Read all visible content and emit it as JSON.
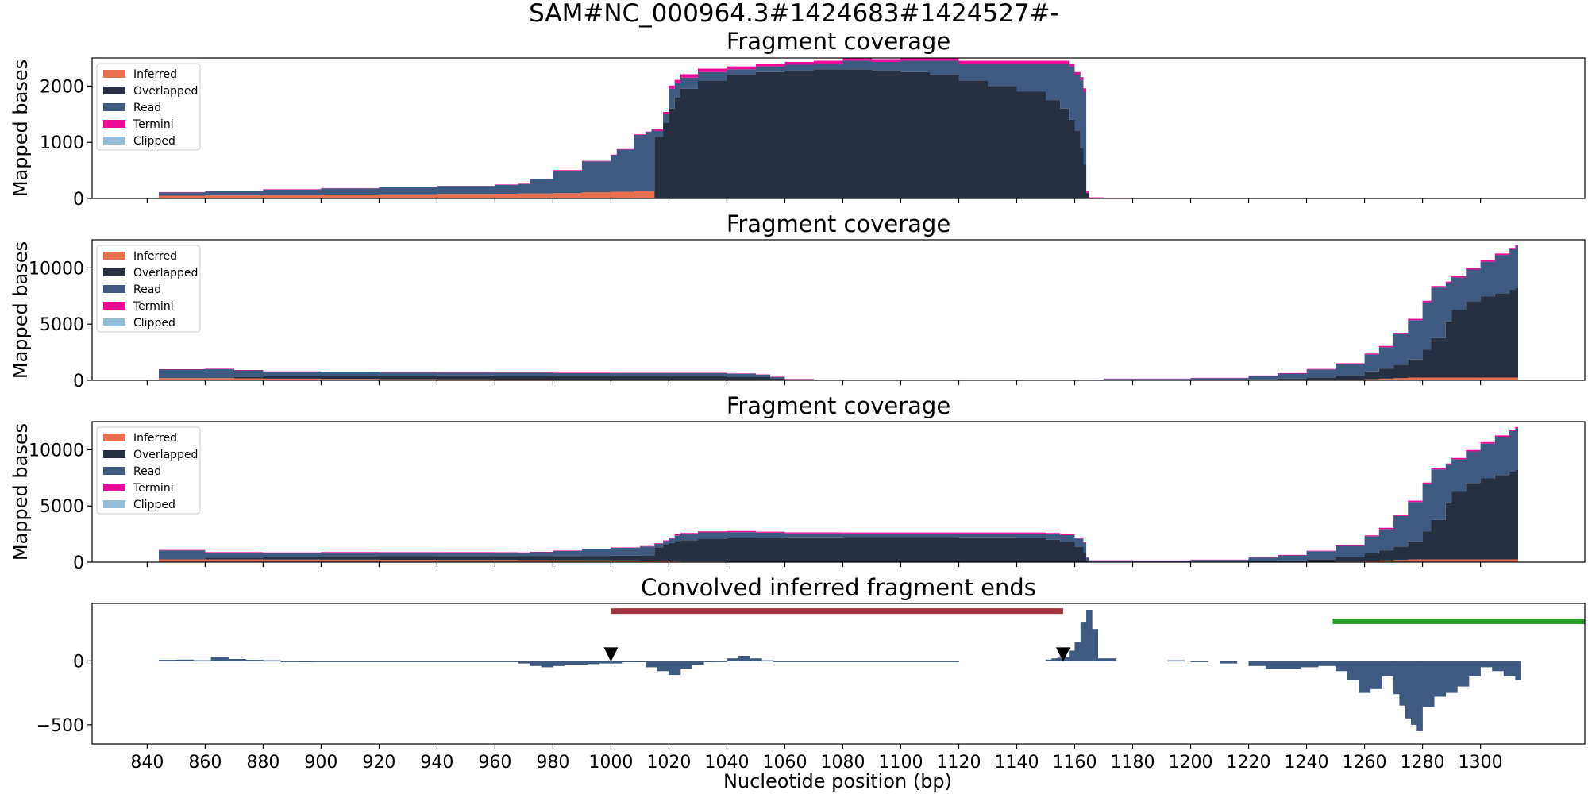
{
  "suptitle": "SAM#NC_000964.3#1424683#1424527#-",
  "xlabel": "Nucleotide position (bp)",
  "x_range": [
    821,
    1336
  ],
  "x_ticks": [
    840,
    860,
    880,
    900,
    920,
    940,
    960,
    980,
    1000,
    1020,
    1040,
    1060,
    1080,
    1100,
    1120,
    1140,
    1160,
    1180,
    1200,
    1220,
    1240,
    1260,
    1280,
    1300
  ],
  "legend_entries": [
    {
      "label": "Inferred",
      "color": "#e8704f"
    },
    {
      "label": "Overlapped",
      "color": "#263042"
    },
    {
      "label": "Read",
      "color": "#3e5a80"
    },
    {
      "label": "Termini",
      "color": "#ee0a99"
    },
    {
      "label": "Clipped",
      "color": "#95bcd8"
    }
  ],
  "chart_data": [
    {
      "type": "area",
      "title": "Fragment coverage",
      "ylabel": "Mapped bases",
      "ylim": [
        0,
        2500
      ],
      "yticks": [
        0,
        1000,
        2000
      ],
      "legend": "top-left",
      "x": [
        844,
        860,
        880,
        900,
        920,
        940,
        960,
        968,
        972,
        980,
        990,
        1000,
        1002,
        1008,
        1012,
        1014,
        1015,
        1018,
        1020,
        1022,
        1024,
        1030,
        1040,
        1050,
        1060,
        1070,
        1080,
        1090,
        1100,
        1110,
        1120,
        1130,
        1140,
        1150,
        1155,
        1158,
        1160,
        1162,
        1163,
        1164,
        1165,
        1170,
        1180,
        1312
      ],
      "series": [
        {
          "name": "Inferred",
          "values": [
            50,
            55,
            60,
            70,
            75,
            80,
            85,
            90,
            90,
            95,
            110,
            120,
            120,
            130,
            130,
            130,
            0,
            0,
            0,
            0,
            0,
            0,
            0,
            0,
            0,
            0,
            0,
            0,
            0,
            0,
            0,
            0,
            0,
            0,
            0,
            0,
            0,
            0,
            0,
            0,
            0,
            0,
            0,
            0
          ]
        },
        {
          "name": "Overlapped",
          "values": [
            0,
            0,
            0,
            0,
            0,
            0,
            0,
            0,
            0,
            0,
            0,
            0,
            0,
            0,
            0,
            0,
            1100,
            1350,
            1600,
            1800,
            1950,
            2100,
            2200,
            2250,
            2280,
            2300,
            2300,
            2280,
            2250,
            2200,
            2100,
            2000,
            1900,
            1750,
            1600,
            1400,
            1200,
            900,
            600,
            100,
            0,
            0,
            0,
            0
          ]
        },
        {
          "name": "Read",
          "values": [
            60,
            80,
            100,
            110,
            130,
            140,
            160,
            170,
            250,
            400,
            550,
            650,
            750,
            1000,
            1050,
            1100,
            100,
            150,
            350,
            250,
            200,
            150,
            100,
            100,
            100,
            100,
            150,
            150,
            200,
            250,
            300,
            400,
            500,
            650,
            800,
            950,
            1000,
            1200,
            1300,
            0,
            0,
            0,
            0,
            0
          ]
        },
        {
          "name": "Termini",
          "values": [
            5,
            5,
            5,
            5,
            5,
            5,
            5,
            5,
            10,
            10,
            10,
            10,
            10,
            10,
            10,
            10,
            30,
            40,
            60,
            60,
            60,
            60,
            50,
            50,
            50,
            50,
            50,
            50,
            50,
            50,
            50,
            50,
            50,
            50,
            50,
            50,
            50,
            60,
            60,
            40,
            20,
            10,
            5,
            0
          ]
        },
        {
          "name": "Clipped",
          "values": [
            0,
            0,
            0,
            0,
            0,
            0,
            0,
            0,
            0,
            0,
            0,
            0,
            0,
            0,
            0,
            0,
            0,
            0,
            0,
            0,
            0,
            0,
            0,
            0,
            0,
            0,
            0,
            0,
            0,
            0,
            0,
            0,
            0,
            0,
            0,
            0,
            0,
            0,
            0,
            0,
            0,
            0,
            0,
            0
          ]
        }
      ]
    },
    {
      "type": "area",
      "title": "Fragment coverage",
      "ylabel": "Mapped bases",
      "ylim": [
        0,
        12500
      ],
      "yticks": [
        0,
        5000,
        10000
      ],
      "legend": "top-left",
      "x": [
        844,
        860,
        870,
        880,
        900,
        920,
        940,
        960,
        980,
        1000,
        1020,
        1040,
        1050,
        1055,
        1060,
        1070,
        1100,
        1150,
        1170,
        1200,
        1220,
        1230,
        1240,
        1250,
        1260,
        1265,
        1270,
        1275,
        1280,
        1283,
        1288,
        1290,
        1295,
        1300,
        1305,
        1310,
        1312
      ],
      "series": [
        {
          "name": "Inferred",
          "values": [
            200,
            200,
            180,
            150,
            120,
            100,
            80,
            70,
            60,
            50,
            50,
            40,
            30,
            20,
            10,
            0,
            0,
            0,
            0,
            0,
            0,
            0,
            20,
            50,
            100,
            150,
            200,
            250,
            250,
            250,
            250,
            250,
            250,
            250,
            250,
            250,
            250
          ]
        },
        {
          "name": "Overlapped",
          "values": [
            0,
            0,
            100,
            200,
            300,
            350,
            350,
            350,
            350,
            350,
            350,
            300,
            250,
            150,
            50,
            30,
            30,
            30,
            30,
            50,
            100,
            150,
            250,
            400,
            700,
            900,
            1200,
            1600,
            2500,
            3500,
            5000,
            6000,
            6800,
            7200,
            7500,
            7800,
            8000
          ]
        },
        {
          "name": "Read",
          "values": [
            750,
            800,
            600,
            400,
            300,
            250,
            250,
            250,
            250,
            250,
            250,
            250,
            220,
            130,
            40,
            20,
            20,
            20,
            100,
            150,
            300,
            450,
            700,
            1000,
            1500,
            1900,
            2700,
            3500,
            4200,
            4500,
            3400,
            2900,
            2800,
            3100,
            3400,
            3600,
            3650
          ]
        },
        {
          "name": "Termini",
          "values": [
            40,
            40,
            40,
            40,
            30,
            30,
            30,
            30,
            30,
            30,
            30,
            30,
            30,
            30,
            20,
            10,
            10,
            10,
            20,
            20,
            30,
            40,
            50,
            70,
            90,
            100,
            110,
            120,
            130,
            130,
            120,
            120,
            120,
            120,
            120,
            120,
            120
          ]
        },
        {
          "name": "Clipped",
          "values": [
            0,
            0,
            0,
            0,
            0,
            0,
            0,
            0,
            0,
            0,
            0,
            0,
            0,
            0,
            0,
            0,
            0,
            0,
            0,
            0,
            0,
            0,
            0,
            0,
            0,
            0,
            0,
            0,
            0,
            0,
            0,
            0,
            0,
            0,
            0,
            0,
            0
          ]
        }
      ]
    },
    {
      "type": "area",
      "title": "Fragment coverage",
      "ylabel": "Mapped bases",
      "ylim": [
        0,
        12500
      ],
      "yticks": [
        0,
        5000,
        10000
      ],
      "legend": "top-left",
      "x": [
        844,
        860,
        880,
        900,
        920,
        940,
        960,
        968,
        972,
        980,
        990,
        1000,
        1010,
        1015,
        1018,
        1020,
        1022,
        1024,
        1030,
        1040,
        1050,
        1060,
        1080,
        1100,
        1120,
        1140,
        1150,
        1155,
        1160,
        1163,
        1164,
        1165,
        1180,
        1200,
        1220,
        1230,
        1240,
        1250,
        1260,
        1265,
        1270,
        1275,
        1280,
        1283,
        1288,
        1290,
        1295,
        1300,
        1305,
        1310,
        1312
      ],
      "series": [
        {
          "name": "Inferred",
          "values": [
            250,
            250,
            230,
            220,
            210,
            200,
            190,
            180,
            180,
            170,
            160,
            150,
            140,
            130,
            120,
            100,
            80,
            60,
            50,
            30,
            20,
            10,
            0,
            0,
            0,
            0,
            0,
            0,
            0,
            0,
            0,
            0,
            0,
            0,
            0,
            0,
            20,
            50,
            100,
            150,
            200,
            250,
            250,
            250,
            250,
            250,
            250,
            250,
            250,
            250,
            250
          ]
        },
        {
          "name": "Overlapped",
          "values": [
            0,
            100,
            200,
            300,
            350,
            350,
            350,
            350,
            350,
            380,
            400,
            420,
            450,
            1200,
            1400,
            1600,
            1800,
            1900,
            2000,
            2100,
            2150,
            2200,
            2250,
            2250,
            2200,
            2150,
            2000,
            1800,
            1400,
            800,
            200,
            50,
            30,
            50,
            100,
            150,
            250,
            400,
            700,
            900,
            1200,
            1600,
            2500,
            3500,
            5000,
            6000,
            6800,
            7200,
            7500,
            7800,
            8000
          ]
        },
        {
          "name": "Read",
          "values": [
            800,
            500,
            400,
            350,
            300,
            300,
            300,
            300,
            350,
            450,
            600,
            700,
            800,
            300,
            350,
            400,
            500,
            550,
            600,
            550,
            450,
            350,
            300,
            300,
            350,
            400,
            500,
            600,
            700,
            900,
            200,
            100,
            100,
            150,
            300,
            450,
            700,
            1000,
            1500,
            1900,
            2700,
            3500,
            4200,
            4500,
            3400,
            2900,
            2800,
            3100,
            3400,
            3600,
            3650
          ]
        },
        {
          "name": "Termini",
          "values": [
            40,
            40,
            40,
            40,
            40,
            40,
            40,
            40,
            40,
            40,
            40,
            40,
            40,
            60,
            70,
            80,
            90,
            90,
            90,
            90,
            90,
            90,
            90,
            90,
            90,
            90,
            90,
            90,
            90,
            90,
            40,
            20,
            20,
            20,
            30,
            40,
            50,
            70,
            90,
            100,
            110,
            120,
            130,
            130,
            120,
            120,
            120,
            120,
            120,
            120,
            120
          ]
        },
        {
          "name": "Clipped",
          "values": [
            0,
            0,
            0,
            0,
            0,
            0,
            0,
            0,
            0,
            0,
            0,
            0,
            0,
            0,
            0,
            0,
            0,
            0,
            0,
            0,
            0,
            0,
            0,
            0,
            0,
            0,
            0,
            0,
            0,
            0,
            0,
            0,
            0,
            0,
            0,
            0,
            0,
            0,
            0,
            0,
            0,
            0,
            0,
            0,
            0,
            0,
            0,
            0,
            0,
            0,
            0
          ]
        }
      ]
    },
    {
      "type": "bar",
      "title": "Convolved inferred fragment ends",
      "ylabel": "",
      "ylim": [
        -650,
        450
      ],
      "yticks": [
        -500,
        0
      ],
      "color": "#3e5a80",
      "x": [
        844,
        850,
        856,
        862,
        868,
        874,
        880,
        886,
        892,
        898,
        904,
        910,
        916,
        922,
        928,
        934,
        940,
        946,
        952,
        958,
        964,
        968,
        972,
        976,
        980,
        984,
        988,
        992,
        996,
        1000,
        1004,
        1008,
        1012,
        1016,
        1020,
        1024,
        1028,
        1032,
        1036,
        1040,
        1044,
        1048,
        1052,
        1056,
        1060,
        1066,
        1072,
        1078,
        1084,
        1090,
        1096,
        1102,
        1108,
        1114,
        1150,
        1152,
        1154,
        1156,
        1158,
        1160,
        1162,
        1164,
        1166,
        1168,
        1192,
        1200,
        1210,
        1220,
        1226,
        1232,
        1238,
        1244,
        1250,
        1254,
        1258,
        1262,
        1266,
        1270,
        1272,
        1274,
        1276,
        1278,
        1280,
        1284,
        1288,
        1292,
        1296,
        1300,
        1304,
        1308,
        1312
      ],
      "values": [
        8,
        10,
        5,
        30,
        15,
        8,
        5,
        -5,
        -10,
        -5,
        0,
        -5,
        0,
        -5,
        0,
        0,
        -5,
        0,
        0,
        0,
        0,
        -20,
        -40,
        -50,
        -40,
        -30,
        -30,
        -25,
        -20,
        -20,
        -10,
        -10,
        -50,
        -80,
        -110,
        -60,
        -30,
        -10,
        0,
        20,
        40,
        20,
        5,
        0,
        -5,
        -5,
        -5,
        0,
        0,
        0,
        0,
        0,
        0,
        0,
        10,
        20,
        25,
        30,
        80,
        150,
        300,
        400,
        250,
        20,
        5,
        -5,
        -20,
        -40,
        -60,
        -60,
        -50,
        -40,
        -80,
        -150,
        -250,
        -220,
        -120,
        -260,
        -350,
        -450,
        -500,
        -550,
        -360,
        -280,
        -250,
        -200,
        -120,
        -50,
        -80,
        -120,
        -150
      ],
      "annotations": [
        {
          "type": "interval",
          "x_start": 1000,
          "x_end": 1156,
          "y": 390,
          "color": "#a0343f"
        },
        {
          "type": "interval",
          "x_start": 1249,
          "x_end": 1336,
          "y": 310,
          "color": "#2e9d2e"
        },
        {
          "type": "marker",
          "shape": "triangle-down",
          "x": 1000,
          "y": 50,
          "color": "#000000"
        },
        {
          "type": "marker",
          "shape": "triangle-down",
          "x": 1156,
          "y": 50,
          "color": "#000000"
        }
      ]
    }
  ]
}
